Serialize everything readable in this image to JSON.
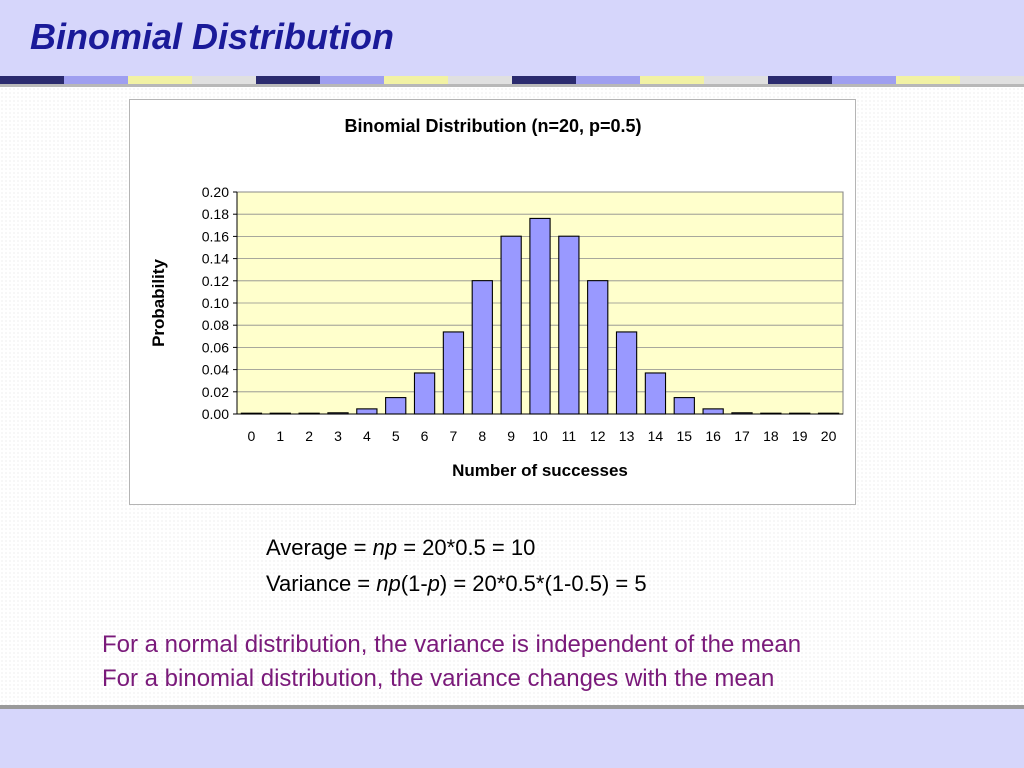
{
  "slide": {
    "title": "Binomial Distribution"
  },
  "colors": {
    "header_band": "#d6d6fb",
    "title_text": "#1a1a99",
    "plot_background": "#ffffcc",
    "bar_fill": "#9999ff",
    "bar_stroke": "#000000",
    "note_text": "#7a1a7a"
  },
  "stats": {
    "average_prefix": "Average = ",
    "average_var": "np",
    "average_suffix": " = 20*0.5 = 10",
    "variance_prefix": "Variance = ",
    "variance_var1": "np",
    "variance_mid": "(1-",
    "variance_var2": "p",
    "variance_suffix": ") = 20*0.5*(1-0.5) = 5"
  },
  "notes": [
    "For a normal distribution, the variance is independent of the mean",
    "For a binomial distribution, the variance changes with the mean"
  ],
  "chart_data": {
    "type": "bar",
    "title": "Binomial Distribution (n=20, p=0.5)",
    "xlabel": "Number of successes",
    "ylabel": "Probability",
    "ylim": [
      0,
      0.2
    ],
    "yticks": [
      "0.00",
      "0.02",
      "0.04",
      "0.06",
      "0.08",
      "0.10",
      "0.12",
      "0.14",
      "0.16",
      "0.18",
      "0.20"
    ],
    "grid": true,
    "legend": "none",
    "categories": [
      "0",
      "1",
      "2",
      "3",
      "4",
      "5",
      "6",
      "7",
      "8",
      "9",
      "10",
      "11",
      "12",
      "13",
      "14",
      "15",
      "16",
      "17",
      "18",
      "19",
      "20"
    ],
    "values": [
      1e-06,
      1.9e-05,
      0.000181,
      0.001087,
      0.004621,
      0.014786,
      0.036964,
      0.073929,
      0.120134,
      0.160179,
      0.176197,
      0.160179,
      0.120134,
      0.073929,
      0.036964,
      0.014786,
      0.004621,
      0.001087,
      0.000181,
      1.9e-05,
      1e-06
    ]
  }
}
